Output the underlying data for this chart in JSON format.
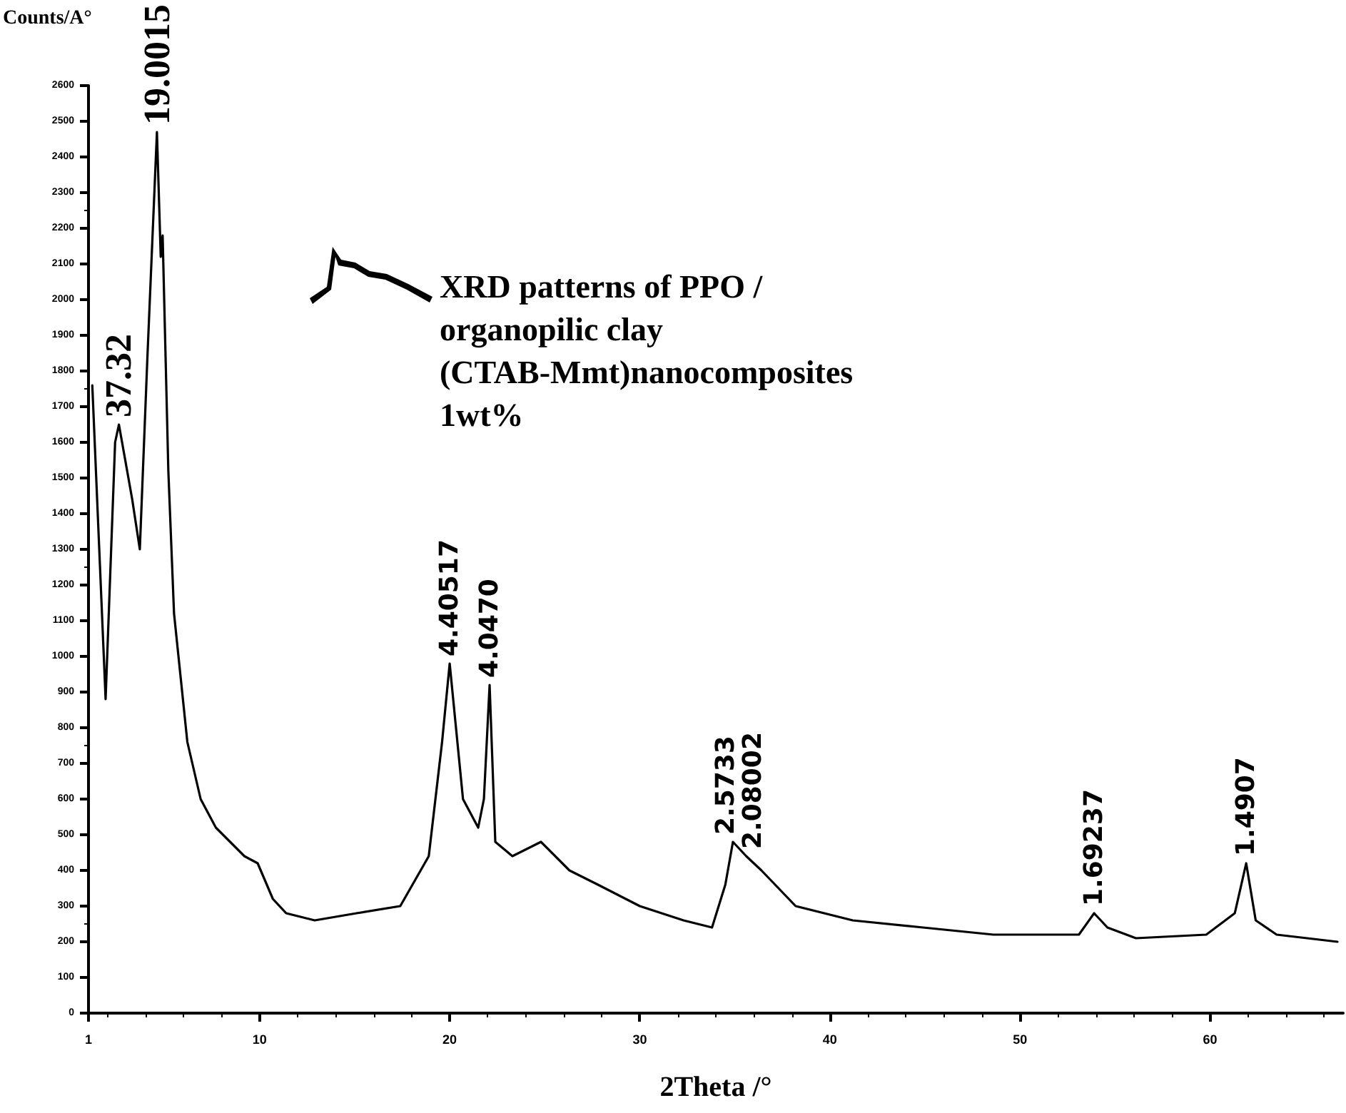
{
  "chart_data": {
    "type": "line",
    "ylabel": "Counts/A°",
    "xlabel": "2Theta /°",
    "annotations": [
      "XRD patterns of PPO /organopilic clay (CTAB-Mmt)nanocomposites 1wt%",
      {
        "text": "37.32",
        "x": 2.6,
        "y": 1650
      },
      {
        "text": "19.0015",
        "x": 4.6,
        "y": 2470
      },
      {
        "text": "4.40517",
        "x": 20.0,
        "y": 980
      },
      {
        "text": "4.0470",
        "x": 22.1,
        "y": 920
      },
      {
        "text": "2.5733",
        "x": 34.9,
        "y": 480
      },
      {
        "text": "2.08002",
        "x": 35.6,
        "y": 440
      },
      {
        "text": "1.69237",
        "x": 53.9,
        "y": 280
      },
      {
        "text": "1.4907",
        "x": 61.9,
        "y": 420
      }
    ],
    "x": [
      1.2,
      1.9,
      2.4,
      2.6,
      2.9,
      3.3,
      3.7,
      4.1,
      4.6,
      4.8,
      4.9,
      5.2,
      5.5,
      6.2,
      6.9,
      7.7,
      9.2,
      9.9,
      10.7,
      11.4,
      12.9,
      15.1,
      17.4,
      18.9,
      19.6,
      20.0,
      20.7,
      21.5,
      21.8,
      22.1,
      22.4,
      23.3,
      24.8,
      26.3,
      27.8,
      30.0,
      32.3,
      33.8,
      34.5,
      34.9,
      35.6,
      36.4,
      38.2,
      41.2,
      44.9,
      48.6,
      53.1,
      53.9,
      54.6,
      56.1,
      59.8,
      61.3,
      61.9,
      62.4,
      63.5,
      66.7
    ],
    "series": [
      {
        "color": "#000000",
        "values": [
          1760,
          880,
          1600,
          1650,
          1560,
          1440,
          1300,
          1840,
          2470,
          2120,
          2180,
          1520,
          1120,
          760,
          600,
          520,
          440,
          420,
          320,
          280,
          260,
          280,
          300,
          440,
          760,
          980,
          600,
          520,
          600,
          920,
          480,
          440,
          480,
          400,
          360,
          300,
          260,
          240,
          360,
          480,
          440,
          400,
          300,
          260,
          240,
          220,
          220,
          280,
          240,
          210,
          220,
          280,
          420,
          260,
          220,
          200
        ]
      }
    ],
    "xlim": [
      1,
      67
    ],
    "xticks": [
      1,
      10,
      20,
      30,
      40,
      50,
      60
    ],
    "ylim": [
      0,
      2600
    ],
    "yticks": [
      0,
      100,
      200,
      300,
      400,
      500,
      600,
      700,
      800,
      900,
      1000,
      1100,
      1200,
      1300,
      1400,
      1500,
      1600,
      1700,
      1800,
      1900,
      2000,
      2100,
      2200,
      2300,
      2400,
      2500,
      2600
    ],
    "grid": false,
    "marker": "none",
    "line_style": "solid"
  }
}
